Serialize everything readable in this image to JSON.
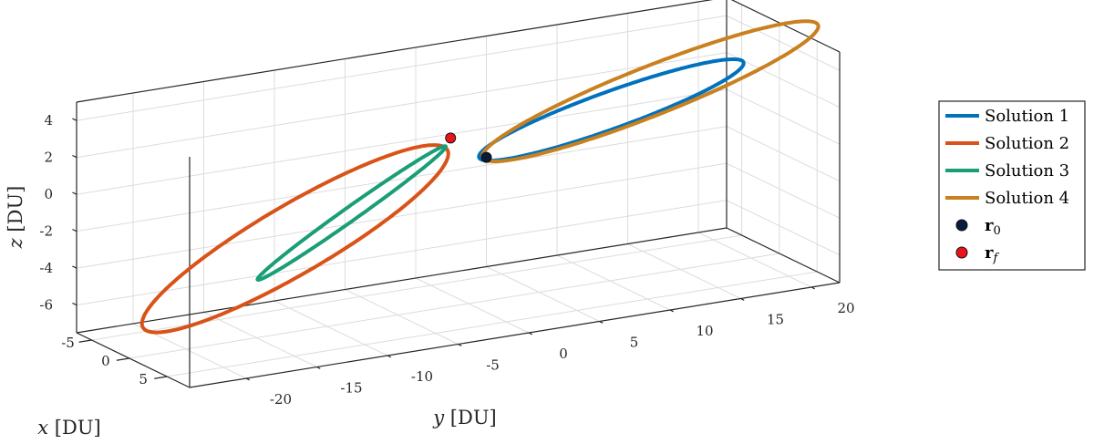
{
  "chart_data": {
    "type": "line",
    "title": "",
    "xlabel": {
      "var": "x",
      "unit": "[DU]"
    },
    "ylabel": {
      "var": "y",
      "unit": "[DU]"
    },
    "zlabel": {
      "var": "z",
      "unit": "[DU]"
    },
    "xlim": [
      -7,
      8
    ],
    "ylim": [
      -24,
      22
    ],
    "zlim": [
      -7.5,
      5
    ],
    "x_ticks": [
      "-5",
      "0",
      "5"
    ],
    "y_ticks": [
      "-20",
      "-15",
      "-10",
      "-5",
      "0",
      "5",
      "10",
      "15",
      "20"
    ],
    "z_ticks": [
      "-6",
      "-4",
      "-2",
      "0",
      "2",
      "4"
    ],
    "grid": true,
    "legend_position": "right",
    "series": [
      {
        "name": "Solution 1",
        "color": "#0072BD",
        "ellipse": {
          "center": [
            0.2,
            10.0,
            1.8
          ],
          "axis_u": [
            0.3,
            9.2,
            1.5
          ],
          "axis_v": [
            -0.4,
            -0.2,
            0.9
          ]
        }
      },
      {
        "name": "Solution 2",
        "color": "#D95319",
        "ellipse": {
          "center": [
            -0.5,
            -12.0,
            -2.6
          ],
          "axis_u": [
            -1.5,
            11.0,
            3.4
          ],
          "axis_v": [
            5.0,
            1.0,
            0.4
          ]
        }
      },
      {
        "name": "Solution 3",
        "color": "#1A9E77",
        "ellipse": {
          "center": [
            -0.5,
            -8.0,
            -1.7
          ],
          "axis_u": [
            -0.8,
            7.0,
            2.6
          ],
          "axis_v": [
            3.0,
            -0.5,
            0.8
          ]
        }
      },
      {
        "name": "Solution 4",
        "color": "#C9801F",
        "ellipse": {
          "center": [
            0.7,
            12.5,
            2.6
          ],
          "axis_u": [
            0.7,
            11.5,
            2.3
          ],
          "axis_v": [
            -0.5,
            -0.3,
            1.2
          ]
        }
      }
    ],
    "markers": [
      {
        "name": "r",
        "subscript": "0",
        "color": "#0a1a3a",
        "point": [
          0.5,
          1.0,
          0.4
        ]
      },
      {
        "name": "r",
        "subscript": "f",
        "color": "#e8141b",
        "point": [
          -0.5,
          -1.0,
          1.5
        ]
      }
    ]
  }
}
